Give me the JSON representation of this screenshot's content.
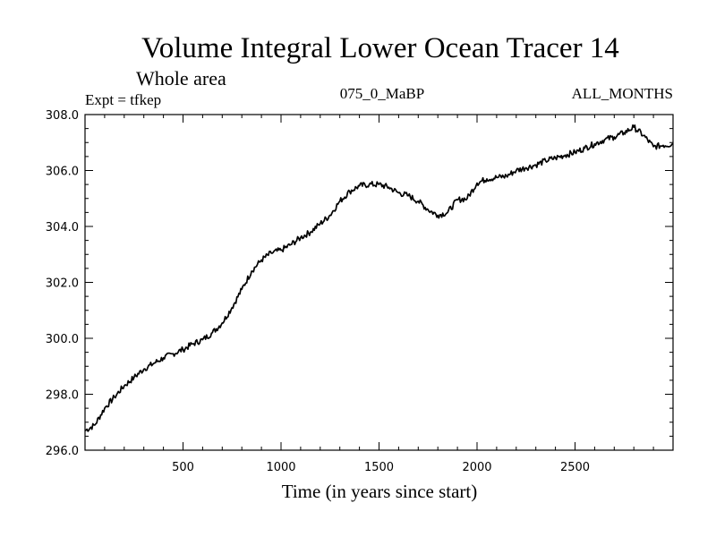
{
  "chart_data": {
    "type": "line",
    "title": "Volume Integral Lower Ocean Tracer 14",
    "subtitle": "Whole area",
    "annotation_left": "Expt = tfkep",
    "annotation_center": "075_0_MaBP",
    "annotation_right": "ALL_MONTHS",
    "xlabel": "Time (in years since start)",
    "ylabel": "",
    "xlim": [
      0,
      3000
    ],
    "ylim": [
      296.0,
      308.0
    ],
    "x_ticks": [
      500,
      1000,
      1500,
      2000,
      2500
    ],
    "x_tick_labels": [
      "500",
      "1000",
      "1500",
      "2000",
      "2500"
    ],
    "y_ticks": [
      296.0,
      298.0,
      300.0,
      302.0,
      304.0,
      306.0,
      308.0
    ],
    "y_tick_labels": [
      "296.0",
      "298.0",
      "300.0",
      "302.0",
      "304.0",
      "306.0",
      "308.0"
    ],
    "grid": false,
    "line_color": "#000000",
    "series": [
      {
        "x": [
          0,
          50,
          100,
          150,
          200,
          250,
          300,
          350,
          400,
          450,
          500,
          550,
          600,
          650,
          700,
          750,
          800,
          850,
          900,
          950,
          1000,
          1050,
          1100,
          1150,
          1200,
          1250,
          1300,
          1350,
          1400,
          1450,
          1500,
          1550,
          1600,
          1650,
          1700,
          1750,
          1800,
          1850,
          1900,
          1950,
          2000,
          2050,
          2100,
          2150,
          2200,
          2250,
          2300,
          2350,
          2400,
          2450,
          2500,
          2550,
          2600,
          2650,
          2700,
          2750,
          2800,
          2850,
          2900,
          2950,
          3000
        ],
        "y": [
          296.7,
          296.9,
          297.5,
          297.9,
          298.3,
          298.6,
          298.9,
          299.1,
          299.3,
          299.45,
          299.6,
          299.8,
          299.95,
          300.2,
          300.55,
          301.1,
          301.75,
          302.4,
          302.8,
          303.05,
          303.15,
          303.35,
          303.6,
          303.8,
          304.1,
          304.4,
          304.9,
          305.25,
          305.45,
          305.5,
          305.5,
          305.4,
          305.2,
          305.1,
          304.9,
          304.6,
          304.4,
          304.5,
          304.95,
          305.0,
          305.55,
          305.7,
          305.75,
          305.8,
          306.0,
          306.1,
          306.2,
          306.35,
          306.45,
          306.55,
          306.65,
          306.8,
          306.95,
          307.1,
          307.2,
          307.35,
          307.55,
          307.25,
          306.85,
          306.9,
          306.95
        ]
      }
    ]
  }
}
